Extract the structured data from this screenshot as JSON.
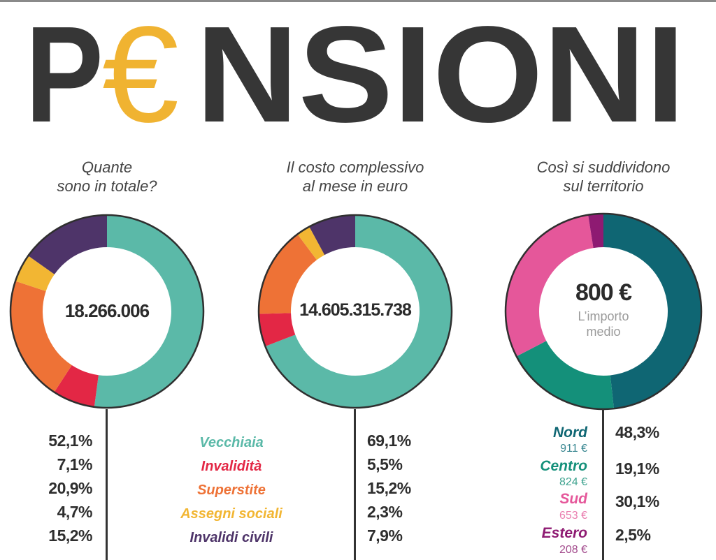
{
  "header": {
    "title_prefix": "P",
    "title_euro": "€",
    "title_suffix": "NSIONI",
    "title_color": "#363636",
    "euro_color": "#f0b331"
  },
  "sections": [
    {
      "question_line1": "Quante",
      "question_line2": "sono in totale?",
      "center_value": "18.266.006"
    },
    {
      "question_line1": "Il costo complessivo",
      "question_line2": "al mese in euro",
      "center_value": "14.605.315.738"
    },
    {
      "question_line1": "Così si suddividono",
      "question_line2": "sul territorio",
      "center_value": "800 €",
      "center_sub1": "L’importo",
      "center_sub2": "medio"
    }
  ],
  "legend": [
    {
      "label": "Vecchiaia",
      "color": "#5bb9a8"
    },
    {
      "label": "Invalidità",
      "color": "#e32745"
    },
    {
      "label": "Superstite",
      "color": "#ee7236"
    },
    {
      "label": "Assegni sociali",
      "color": "#f2b633"
    },
    {
      "label": "Invalidi civili",
      "color": "#4e3469"
    }
  ],
  "count_pcts": [
    "52,1%",
    "7,1%",
    "20,9%",
    "4,7%",
    "15,2%"
  ],
  "cost_pcts": [
    "69,1%",
    "5,5%",
    "15,2%",
    "2,3%",
    "7,9%"
  ],
  "regions": [
    {
      "label": "Nord",
      "amount": "911 €",
      "pct": "48,3%",
      "color": "#0f6673",
      "amount_color": "#3b8892"
    },
    {
      "label": "Centro",
      "amount": "824 €",
      "pct": "19,1%",
      "color": "#14907a",
      "amount_color": "#3fa38f"
    },
    {
      "label": "Sud",
      "amount": "653 €",
      "pct": "30,1%",
      "color": "#e5579a",
      "amount_color": "#ea7fb0"
    },
    {
      "label": "Estero",
      "amount": "208 €",
      "pct": "2,5%",
      "color": "#8e1a72",
      "amount_color": "#a24a8c"
    }
  ],
  "chart_data": [
    {
      "type": "pie",
      "title": "Quante sono in totale?",
      "center_label": "18.266.006",
      "categories": [
        "Vecchiaia",
        "Invalidità",
        "Superstite",
        "Assegni sociali",
        "Invalidi civili"
      ],
      "values": [
        52.1,
        7.1,
        20.9,
        4.7,
        15.2
      ],
      "colors": [
        "#5bb9a8",
        "#e32745",
        "#ee7236",
        "#f2b633",
        "#4e3469"
      ],
      "unit": "%"
    },
    {
      "type": "pie",
      "title": "Il costo complessivo al mese in euro",
      "center_label": "14.605.315.738",
      "categories": [
        "Vecchiaia",
        "Invalidità",
        "Superstite",
        "Assegni sociali",
        "Invalidi civili"
      ],
      "values": [
        69.1,
        5.5,
        15.2,
        2.3,
        7.9
      ],
      "colors": [
        "#5bb9a8",
        "#e32745",
        "#ee7236",
        "#f2b633",
        "#4e3469"
      ],
      "unit": "%"
    },
    {
      "type": "pie",
      "title": "Così si suddividono sul territorio",
      "center_label": "800 € L’importo medio",
      "categories": [
        "Nord",
        "Centro",
        "Sud",
        "Estero"
      ],
      "values": [
        48.3,
        19.1,
        30.1,
        2.5
      ],
      "average_amounts": [
        "911 €",
        "824 €",
        "653 €",
        "208 €"
      ],
      "colors": [
        "#0f6673",
        "#14907a",
        "#e5579a",
        "#8e1a72"
      ],
      "unit": "%"
    }
  ]
}
